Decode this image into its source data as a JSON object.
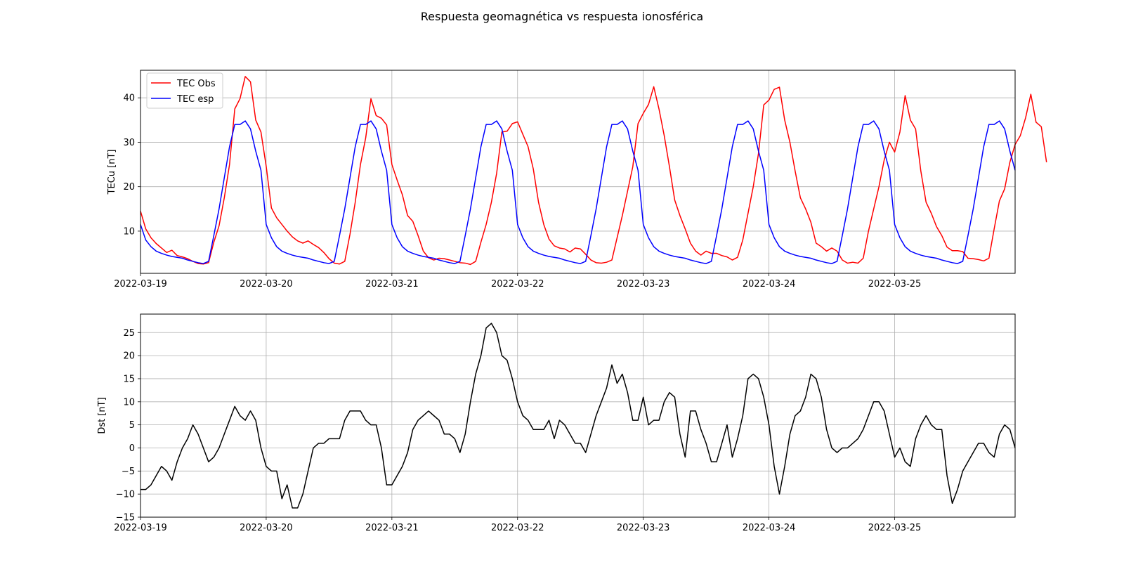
{
  "title": "Respuesta geomagnética vs respuesta ionosférica",
  "chart_data": [
    {
      "type": "line",
      "ylabel": "TECu [nT]",
      "xlabel": "",
      "x_start": "2022-03-19T00:00",
      "x_end": "2022-03-25T23:00",
      "x_step_hours": 1,
      "xlim": [
        "2022-03-19",
        "2022-03-25T23:00"
      ],
      "ylim": [
        0.5,
        46.2
      ],
      "xticks": [
        "2022-03-19",
        "2022-03-20",
        "2022-03-21",
        "2022-03-22",
        "2022-03-23",
        "2022-03-24",
        "2022-03-25"
      ],
      "yticks": [
        10,
        20,
        30,
        40
      ],
      "grid": true,
      "legend_position": "upper-left",
      "series": [
        {
          "name": "TEC Obs",
          "color": "#ff0000",
          "values": [
            14.5,
            10.5,
            8.5,
            7.2,
            6.2,
            5.2,
            5.7,
            4.5,
            4.2,
            3.8,
            3.2,
            2.7,
            2.6,
            2.9,
            7.5,
            11.2,
            17.5,
            25.0,
            37.5,
            39.8,
            44.8,
            43.6,
            35.0,
            32.3,
            24.6,
            15.2,
            13.0,
            11.5,
            10.0,
            8.7,
            7.8,
            7.3,
            7.8,
            7.0,
            6.3,
            5.2,
            3.8,
            2.8,
            2.6,
            3.2,
            9.3,
            16.5,
            25.0,
            31.0,
            39.8,
            36.0,
            35.4,
            33.9,
            25.0,
            21.5,
            18.2,
            13.5,
            12.2,
            9.0,
            5.5,
            4.0,
            3.5,
            3.9,
            3.8,
            3.5,
            3.2,
            2.9,
            2.8,
            2.5,
            3.2,
            7.5,
            11.5,
            16.5,
            23.0,
            32.3,
            32.5,
            34.2,
            34.6,
            31.8,
            29.0,
            24.0,
            16.5,
            11.5,
            8.2,
            6.7,
            6.2,
            6.0,
            5.3,
            6.2,
            6.0,
            4.8,
            3.5,
            2.9,
            2.8,
            3.0,
            3.5,
            8.5,
            13.5,
            19.0,
            24.5,
            34.2,
            36.5,
            38.5,
            42.5,
            37.5,
            31.5,
            24.5,
            17.0,
            13.5,
            10.5,
            7.3,
            5.5,
            4.6,
            5.5,
            5.0,
            5.0,
            4.5,
            4.2,
            3.5,
            4.1,
            8.0,
            14.0,
            20.0,
            27.5,
            38.4,
            39.5,
            41.9,
            42.4,
            35.0,
            30.0,
            23.5,
            17.5,
            15.0,
            12.0,
            7.3,
            6.5,
            5.5,
            6.2,
            5.5,
            3.5,
            2.8,
            3.0,
            2.8,
            3.9,
            10.0,
            15.0,
            20.0,
            26.0,
            30.0,
            27.8,
            32.3,
            40.5,
            35.0,
            33.0,
            23.5,
            16.5,
            14.0,
            11.0,
            9.0,
            6.4,
            5.6,
            5.6,
            5.4,
            3.9,
            3.8,
            3.6,
            3.3,
            3.9,
            10.5,
            16.8,
            19.5,
            25.5,
            29.5,
            31.5,
            35.5,
            40.8,
            34.5,
            33.5,
            25.5
          ]
        },
        {
          "name": "TEC esp",
          "color": "#0000ff",
          "values": [
            11.5,
            8.0,
            6.5,
            5.5,
            5.0,
            4.6,
            4.3,
            4.1,
            3.9,
            3.5,
            3.2,
            2.9,
            2.7,
            3.2,
            9.0,
            15.0,
            22.0,
            29.0,
            34.0,
            34.0,
            34.8,
            33.0,
            28.0,
            23.7,
            11.5,
            8.5,
            6.5,
            5.5,
            5.0,
            4.6,
            4.3,
            4.1,
            3.9,
            3.5,
            3.2,
            2.9,
            2.7,
            3.2,
            9.0,
            15.0,
            22.0,
            29.0,
            34.0,
            34.0,
            34.8,
            33.0,
            28.0,
            23.7,
            11.5,
            8.5,
            6.5,
            5.5,
            5.0,
            4.6,
            4.3,
            4.1,
            3.9,
            3.5,
            3.2,
            2.9,
            2.7,
            3.2,
            9.0,
            15.0,
            22.0,
            29.0,
            34.0,
            34.0,
            34.8,
            33.0,
            28.0,
            23.7,
            11.5,
            8.5,
            6.5,
            5.5,
            5.0,
            4.6,
            4.3,
            4.1,
            3.9,
            3.5,
            3.2,
            2.9,
            2.7,
            3.2,
            9.0,
            15.0,
            22.0,
            29.0,
            34.0,
            34.0,
            34.8,
            33.0,
            28.0,
            23.7,
            11.5,
            8.5,
            6.5,
            5.5,
            5.0,
            4.6,
            4.3,
            4.1,
            3.9,
            3.5,
            3.2,
            2.9,
            2.7,
            3.2,
            9.0,
            15.0,
            22.0,
            29.0,
            34.0,
            34.0,
            34.8,
            33.0,
            28.0,
            23.7,
            11.5,
            8.5,
            6.5,
            5.5,
            5.0,
            4.6,
            4.3,
            4.1,
            3.9,
            3.5,
            3.2,
            2.9,
            2.7,
            3.2,
            9.0,
            15.0,
            22.0,
            29.0,
            34.0,
            34.0,
            34.8,
            33.0,
            28.0,
            23.7,
            11.5,
            8.5,
            6.5,
            5.5,
            5.0,
            4.6,
            4.3,
            4.1,
            3.9,
            3.5,
            3.2,
            2.9,
            2.7,
            3.2,
            9.0,
            15.0,
            22.0,
            29.0,
            34.0,
            34.0,
            34.8,
            33.0,
            28.0,
            23.7
          ]
        }
      ]
    },
    {
      "type": "line",
      "ylabel": "Dst [nT]",
      "xlabel": "",
      "x_start": "2022-03-19T00:00",
      "x_end": "2022-03-25T23:00",
      "x_step_hours": 1,
      "xlim": [
        "2022-03-19",
        "2022-03-25T23:00"
      ],
      "ylim": [
        -15,
        29
      ],
      "xticks": [
        "2022-03-19",
        "2022-03-20",
        "2022-03-21",
        "2022-03-22",
        "2022-03-23",
        "2022-03-24",
        "2022-03-25"
      ],
      "yticks": [
        -15,
        -10,
        -5,
        0,
        5,
        10,
        15,
        20,
        25
      ],
      "grid": true,
      "series": [
        {
          "color": "#000000",
          "values": [
            -9,
            -9,
            -8,
            -6,
            -4,
            -5,
            -7,
            -3,
            0,
            2,
            5,
            3,
            0,
            -3,
            -2,
            0,
            3,
            6,
            9,
            7,
            6,
            8,
            6,
            0,
            -4,
            -5,
            -5,
            -11,
            -8,
            -13,
            -13,
            -10,
            -5,
            0,
            1,
            1,
            2,
            2,
            2,
            6,
            8,
            8,
            8,
            6,
            5,
            5,
            0,
            -8,
            -8,
            -6,
            -4,
            -1,
            4,
            6,
            7,
            8,
            7,
            6,
            3,
            3,
            2,
            -1,
            3,
            10,
            16,
            20,
            26,
            27,
            25,
            20,
            19,
            15,
            10,
            7,
            6,
            4,
            4,
            4,
            6,
            2,
            6,
            5,
            3,
            1,
            1,
            -1,
            3,
            7,
            10,
            13,
            18,
            14,
            16,
            12,
            6,
            6,
            11,
            5,
            6,
            6,
            10,
            12,
            11,
            3,
            -2,
            8,
            8,
            4,
            1,
            -3,
            -3,
            1,
            5,
            -2,
            2,
            7,
            15,
            16,
            15,
            11,
            5,
            -4,
            -10,
            -4,
            3,
            7,
            8,
            11,
            16,
            15,
            11,
            4,
            0,
            -1,
            0,
            0,
            1,
            2,
            4,
            7,
            10,
            10,
            8,
            3,
            -2,
            0,
            -3,
            -4,
            2,
            5,
            7,
            5,
            4,
            4,
            -6,
            -12,
            -9,
            -5,
            -3,
            -1,
            1,
            1,
            -1,
            -2,
            3,
            5,
            4,
            0
          ]
        }
      ]
    }
  ]
}
